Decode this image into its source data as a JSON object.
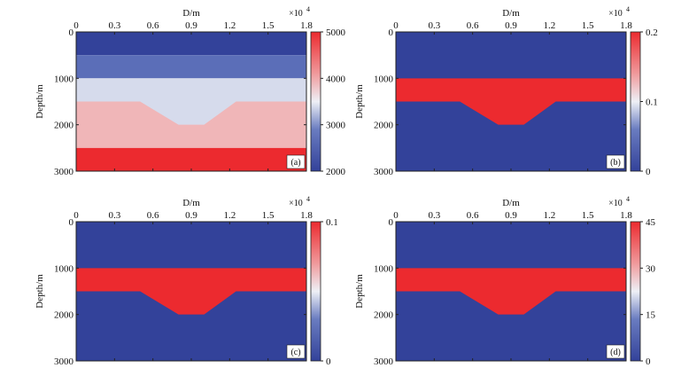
{
  "chart_data": [
    {
      "type": "heatmap",
      "panel_label": "(a)",
      "xlabel": "D/m",
      "ylabel": "Depth/m",
      "x_multiplier": "×10",
      "x_multiplier_exp": "4",
      "xlim": [
        0,
        1.8
      ],
      "ylim": [
        0,
        3000
      ],
      "xticks": [
        "0",
        "0.3",
        "0.6",
        "0.9",
        "1.2",
        "1.5",
        "1.8"
      ],
      "yticks": [
        "0",
        "1000",
        "2000",
        "3000"
      ],
      "colorbar": {
        "min": 2000,
        "max": 5000,
        "ticks": [
          "5000",
          "4000",
          "3000",
          "2000"
        ],
        "tick_values": [
          5000,
          4000,
          3000,
          2000
        ]
      },
      "layers": [
        {
          "name": "layer-1",
          "value": 2000,
          "color": "#33429a"
        },
        {
          "name": "layer-2",
          "value": 2800,
          "color": "#5b6eb8"
        },
        {
          "name": "layer-3",
          "value": 3500,
          "color": "#d6dbec"
        },
        {
          "name": "layer-4",
          "value": 4200,
          "color": "#f0b6b8"
        },
        {
          "name": "layer-5",
          "value": 5000,
          "color": "#ec2a2f"
        }
      ]
    },
    {
      "type": "heatmap",
      "panel_label": "(b)",
      "xlabel": "D/m",
      "ylabel": "Depth/m",
      "x_multiplier": "×10",
      "x_multiplier_exp": "4",
      "xlim": [
        0,
        1.8
      ],
      "ylim": [
        0,
        3000
      ],
      "xticks": [
        "0",
        "0.3",
        "0.6",
        "0.9",
        "1.2",
        "1.5",
        "1.8"
      ],
      "yticks": [
        "0",
        "1000",
        "2000",
        "3000"
      ],
      "colorbar": {
        "min": 0,
        "max": 0.2,
        "ticks": [
          "0.2",
          "0.1",
          "0"
        ],
        "tick_values": [
          0.2,
          0.1,
          0
        ]
      },
      "background": {
        "value": 0,
        "color": "#33429a"
      },
      "anomaly": {
        "value": 0.2,
        "color": "#ec2a2f"
      }
    },
    {
      "type": "heatmap",
      "panel_label": "(c)",
      "xlabel": "D/m",
      "ylabel": "Depth/m",
      "x_multiplier": "×10",
      "x_multiplier_exp": "4",
      "xlim": [
        0,
        1.8
      ],
      "ylim": [
        0,
        3000
      ],
      "xticks": [
        "0",
        "0.3",
        "0.6",
        "0.9",
        "1.2",
        "1.5",
        "1.8"
      ],
      "yticks": [
        "0",
        "1000",
        "2000",
        "3000"
      ],
      "colorbar": {
        "min": 0,
        "max": 0.1,
        "ticks": [
          "0.1",
          "0"
        ],
        "tick_values": [
          0.1,
          0
        ]
      },
      "background": {
        "value": 0,
        "color": "#33429a"
      },
      "anomaly": {
        "value": 0.1,
        "color": "#ec2a2f"
      }
    },
    {
      "type": "heatmap",
      "panel_label": "(d)",
      "xlabel": "D/m",
      "ylabel": "Depth/m",
      "x_multiplier": "×10",
      "x_multiplier_exp": "4",
      "xlim": [
        0,
        1.8
      ],
      "ylim": [
        0,
        3000
      ],
      "xticks": [
        "0",
        "0.3",
        "0.6",
        "0.9",
        "1.2",
        "1.5",
        "1.8"
      ],
      "yticks": [
        "0",
        "1000",
        "2000",
        "3000"
      ],
      "colorbar": {
        "min": 0,
        "max": 45,
        "ticks": [
          "45",
          "30",
          "15",
          "0"
        ],
        "tick_values": [
          45,
          30,
          15,
          0
        ]
      },
      "background": {
        "value": 0,
        "color": "#33429a"
      },
      "anomaly": {
        "value": 45,
        "color": "#ec2a2f"
      }
    }
  ],
  "geometry_model": {
    "x_units": "×10^4 m",
    "interfaces_depth_m": [
      500,
      1000,
      1500,
      2500
    ],
    "anomaly_top_m": 1000,
    "anomaly_base_flat_m": 1500,
    "anomaly_base_deep_m": 2000,
    "anomaly_base_x": [
      0,
      0.5,
      0.8,
      1.0,
      1.25,
      1.8
    ],
    "anomaly_base_y": [
      1500,
      1500,
      2000,
      2000,
      1500,
      1500
    ]
  }
}
